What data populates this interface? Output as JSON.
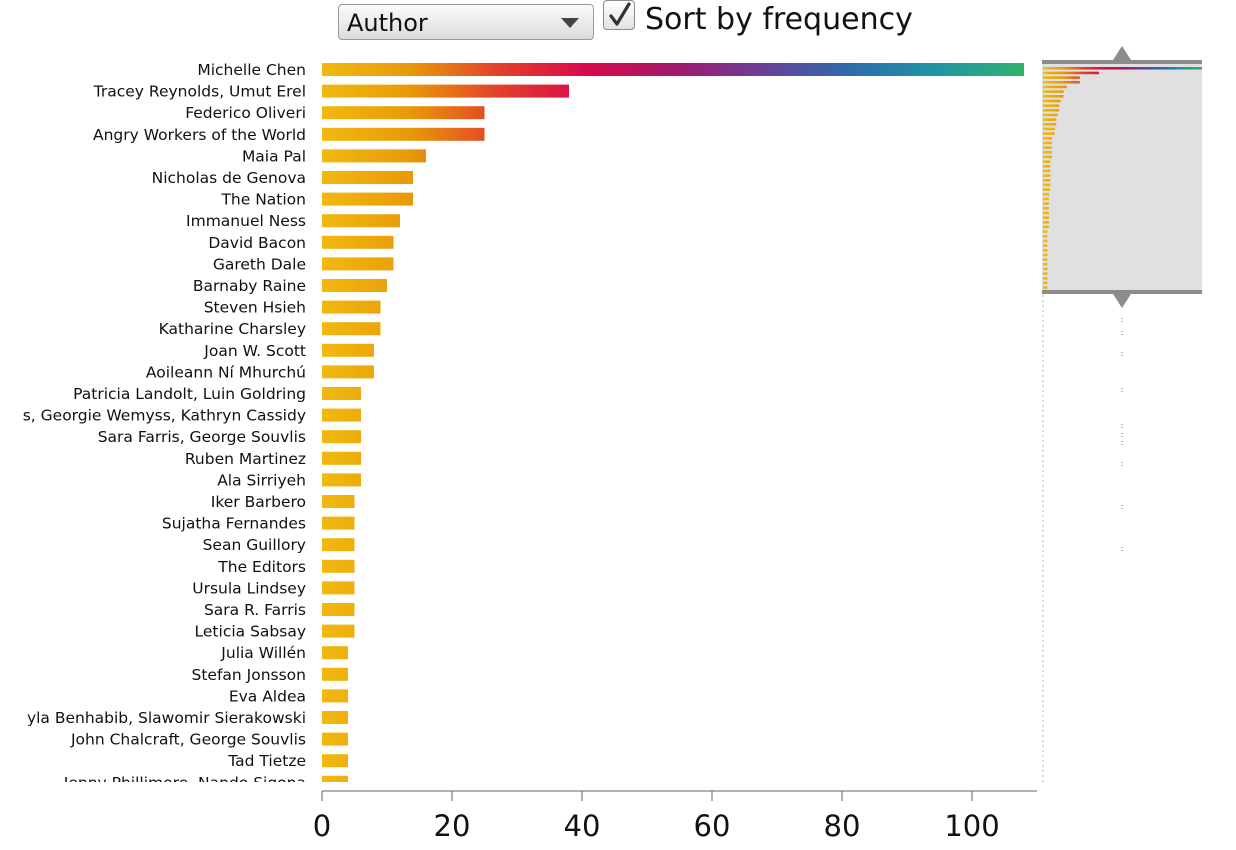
{
  "controls": {
    "field_select": {
      "value": "Author"
    },
    "sort_checkbox": {
      "label": "Sort by frequency",
      "checked": true
    }
  },
  "colors": {
    "gradient": [
      "#f2b90f",
      "#e89a08",
      "#e2412a",
      "#d90a4a",
      "#a3186a",
      "#6a3f98",
      "#2f6aab",
      "#1e96a4",
      "#2fb36d"
    ],
    "navigator_background": "#e0e0e0",
    "navigator_handle": "#8c8c8c",
    "axis": "#666666"
  },
  "chart_data": {
    "type": "bar",
    "orientation": "horizontal",
    "xlim": [
      0,
      110
    ],
    "xticks": [
      "0",
      "20",
      "40",
      "60",
      "80",
      "100"
    ],
    "categories": [
      "Michelle Chen",
      "Tracey Reynolds, Umut Erel",
      "Federico Oliveri",
      "Angry Workers of the World",
      "Maia Pal",
      "Nicholas de Genova",
      "The Nation",
      "Immanuel Ness",
      "David Bacon",
      "Gareth Dale",
      "Barnaby Raine",
      "Steven Hsieh",
      "Katharine Charsley",
      "Joan W. Scott",
      "Aoileann Ní Mhurchú",
      "Patricia Landolt, Luin Goldring",
      "s, Georgie Wemyss, Kathryn Cassidy",
      "Sara Farris, George Souvlis",
      "Ruben Martinez",
      "Ala Sirriyeh",
      "Iker Barbero",
      "Sujatha Fernandes",
      "Sean Guillory",
      "The Editors",
      "Ursula Lindsey",
      "Sara R. Farris",
      "Leticia Sabsay",
      "Julia Willén",
      "Stefan Jonsson",
      "Eva Aldea",
      "yla Benhabib, Slawomir Sierakowski",
      "John Chalcraft, George Souvlis",
      "Tad Tietze",
      "Jenny Phillimore, Nando Sigona"
    ],
    "values": [
      108,
      38,
      25,
      25,
      16,
      14,
      14,
      12,
      11,
      11,
      10,
      9,
      9,
      8,
      8,
      6,
      6,
      6,
      6,
      6,
      5,
      5,
      5,
      5,
      5,
      5,
      5,
      4,
      4,
      4,
      4,
      4,
      4,
      4
    ],
    "navigator_values": [
      108,
      38,
      25,
      25,
      16,
      14,
      14,
      12,
      11,
      11,
      10,
      9,
      9,
      8,
      8,
      6,
      6,
      6,
      6,
      6,
      5,
      5,
      5,
      5,
      5,
      5,
      5,
      4,
      4,
      4,
      4,
      4,
      4,
      4,
      4,
      3,
      3,
      3,
      3,
      3,
      3,
      3,
      3,
      3,
      3,
      3,
      3,
      3
    ],
    "navigator_window": [
      0.0,
      0.23
    ]
  }
}
